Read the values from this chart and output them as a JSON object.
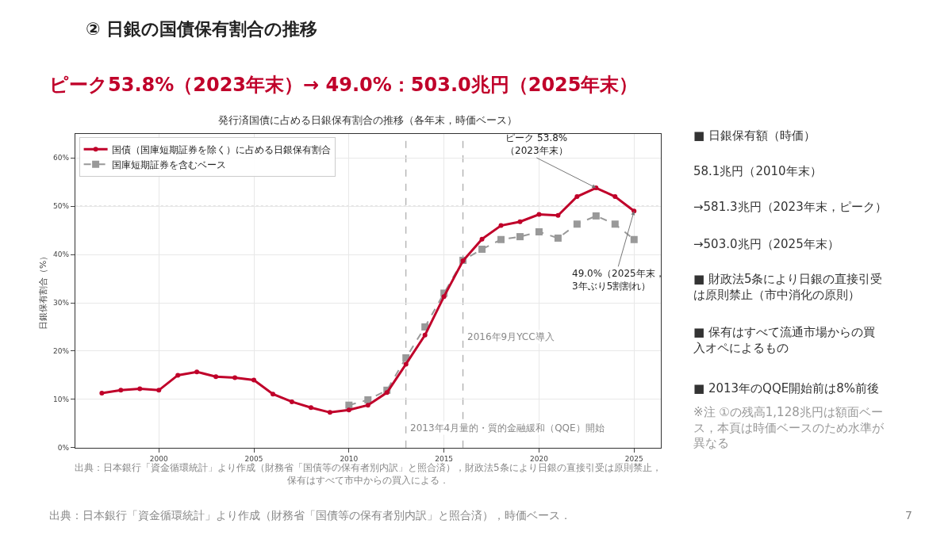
{
  "chart_data": {
    "type": "line",
    "title": "② 日銀の国債保有割合の推移",
    "subtitle": "ピーク53.8%（2023年末）→ 49.0%：503.0兆円（2025年末）",
    "ylabel": "日銀保有割合（%）",
    "x": [
      1997,
      1998,
      1999,
      2000,
      2001,
      2002,
      2003,
      2004,
      2005,
      2006,
      2007,
      2008,
      2009,
      2010,
      2011,
      2012,
      2013,
      2014,
      2015,
      2016,
      2017,
      2018,
      2019,
      2020,
      2021,
      2022,
      2023,
      2024,
      2025
    ],
    "series": [
      {
        "name": "国債（国庫短期証券を除く）に占める日銀保有割合",
        "color": "#c0002a",
        "marker": "circle",
        "line_style": "solid",
        "values": [
          11.3,
          11.9,
          12.2,
          11.9,
          15.0,
          15.7,
          14.7,
          14.5,
          14.0,
          11.1,
          9.5,
          8.3,
          7.3,
          7.8,
          8.8,
          11.4,
          17.3,
          23.3,
          31.3,
          38.7,
          43.2,
          46.0,
          46.8,
          48.3,
          48.1,
          52.0,
          53.8,
          52.0,
          49.0
        ]
      },
      {
        "name": "国庫短期証券を含むベース",
        "color": "#999999",
        "marker": "square",
        "line_style": "dashed",
        "x": [
          2010,
          2011,
          2012,
          2013,
          2014,
          2015,
          2016,
          2017,
          2018,
          2019,
          2020,
          2021,
          2022,
          2023,
          2024,
          2025
        ],
        "values": [
          8.8,
          9.9,
          11.9,
          18.6,
          25.0,
          32.0,
          38.8,
          41.1,
          43.1,
          43.7,
          44.7,
          43.4,
          46.3,
          48.0,
          46.3,
          43.1
        ]
      }
    ],
    "xlim": [
      1995.6,
      2026.4
    ],
    "ylim": [
      0,
      65
    ],
    "xticks": [
      2000,
      2005,
      2010,
      2015,
      2020,
      2025
    ],
    "yticks": [
      {
        "value": 0,
        "label": "0%"
      },
      {
        "value": 10,
        "label": "10%"
      },
      {
        "value": 20,
        "label": "20%"
      },
      {
        "value": 30,
        "label": "30%"
      },
      {
        "value": 40,
        "label": "40%"
      },
      {
        "value": 50,
        "label": "50%"
      },
      {
        "value": 60,
        "label": "60%"
      }
    ],
    "ref_lines": [
      {
        "axis": "y",
        "value": 50,
        "label": null,
        "color": "#999999",
        "line_style": "dotted"
      },
      {
        "axis": "x",
        "value": 2013,
        "label": "2013年4月量的・質的金融緩和（QQE）開始",
        "color": "#999999",
        "line_style": "dashed"
      },
      {
        "axis": "x",
        "value": 2016,
        "label": "2016年9月YCC導入",
        "color": "#999999",
        "line_style": "dashed"
      }
    ],
    "annotations": [
      "発行済国債に占める日銀保有割合の推移（各年末，時価ベース）",
      {
        "text": "ピーク 53.8%\n（2023年末）",
        "x": 2023,
        "y": 53.8
      },
      {
        "text": "49.0%（2025年末，\n3年ぶり5割割れ）",
        "x": 2025,
        "y": 49.0
      },
      "■ 日銀保有額（時価）",
      "58.1兆円（2010年末）",
      "→581.3兆円（2023年末，ピーク）",
      "→503.0兆円（2025年末）",
      "■ 財政法5条により日銀の直接引受は原則禁止（市中消化の原則）",
      "■ 保有はすべて流通市場からの買入オペによるもの",
      "■ 2013年のQQE開始前は8%前後",
      "※注 ①の残高1,128兆円は額面ベース，本頁は時価ベースのため水準が異なる",
      "出典：日本銀行「資金循環統計」より作成（財務省「国債等の保有者別内訳」と照合済），財政法5条により日銀の直接引受は原則禁止，保有はすべて市中からの買入による．",
      "出典：日本銀行「資金循環統計」より作成（財務省「国債等の保有者別内訳」と照合済），時価ベース．",
      "7"
    ],
    "grid": true,
    "legend": "top left"
  }
}
